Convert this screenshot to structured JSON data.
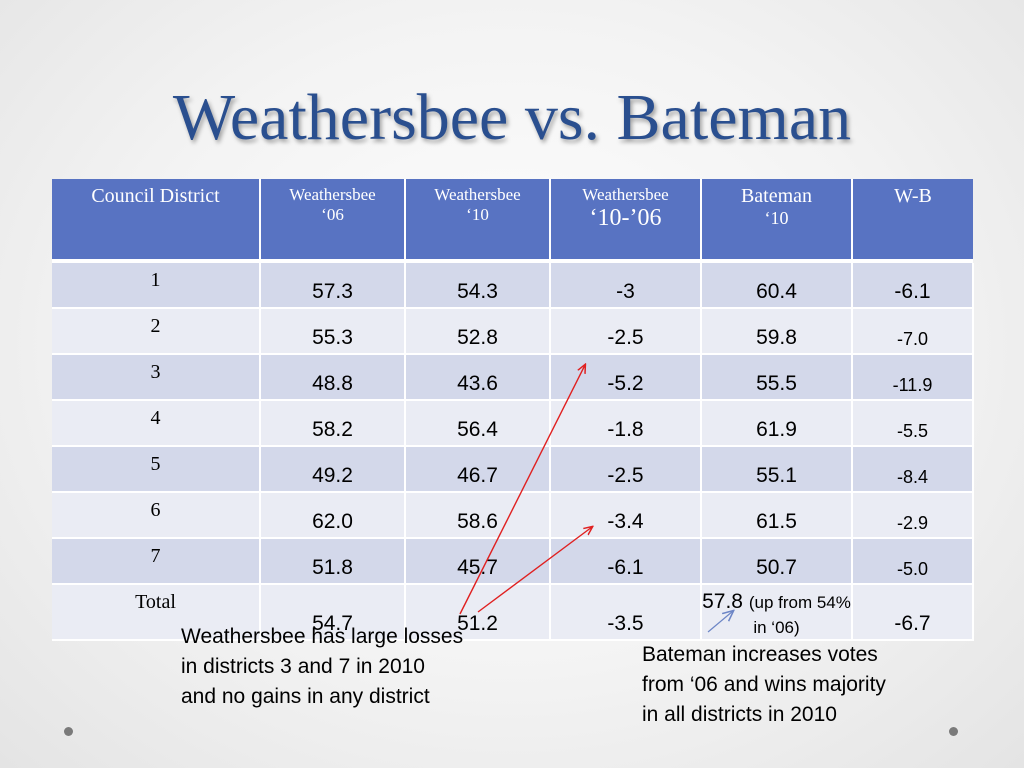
{
  "title": "Weathersbee vs. Bateman",
  "table": {
    "headers": [
      {
        "line1": "Council District",
        "line2": ""
      },
      {
        "line1": "Weathersbee",
        "line2": "‘06"
      },
      {
        "line1": "Weathersbee",
        "line2": "‘10"
      },
      {
        "line1": "Weathersbee",
        "line2": "‘10-’06"
      },
      {
        "line1": "Bateman",
        "line2": "‘10"
      },
      {
        "line1": "W-B",
        "line2": ""
      }
    ],
    "rows": [
      {
        "district": "1",
        "w06": "57.3",
        "w10": "54.3",
        "diff": "-3",
        "b10": "60.4",
        "wb": "-6.1"
      },
      {
        "district": "2",
        "w06": "55.3",
        "w10": "52.8",
        "diff": "-2.5",
        "b10": "59.8",
        "wb": "-7.0"
      },
      {
        "district": "3",
        "w06": "48.8",
        "w10": "43.6",
        "diff": "-5.2",
        "b10": "55.5",
        "wb": "-11.9"
      },
      {
        "district": "4",
        "w06": "58.2",
        "w10": "56.4",
        "diff": "-1.8",
        "b10": "61.9",
        "wb": "-5.5"
      },
      {
        "district": "5",
        "w06": "49.2",
        "w10": "46.7",
        "diff": "-2.5",
        "b10": "55.1",
        "wb": "-8.4"
      },
      {
        "district": "6",
        "w06": "62.0",
        "w10": "58.6",
        "diff": "-3.4",
        "b10": "61.5",
        "wb": "-2.9"
      },
      {
        "district": "7",
        "w06": "51.8",
        "w10": "45.7",
        "diff": "-6.1",
        "b10": "50.7",
        "wb": "-5.0"
      }
    ],
    "total": {
      "district": "Total",
      "w06": "54.7",
      "w10": "51.2",
      "diff": "-3.5",
      "b10_main": "57.8",
      "b10_note": "(up from 54% in ‘06)",
      "wb": "-6.7"
    }
  },
  "notes": {
    "left": [
      "Weathersbee has large losses",
      "in districts 3 and 7 in 2010",
      "and no gains in any district"
    ],
    "right": [
      "Bateman increases votes",
      "from ‘06 and wins majority",
      "in all districts in 2010"
    ]
  },
  "colors": {
    "title": "#2a4f8f",
    "header_bg": "#5873c2",
    "row_odd": "#d3d8ea",
    "row_even": "#eaecf4",
    "arrow_red": "#e02020",
    "arrow_blue": "#6d86c6"
  }
}
